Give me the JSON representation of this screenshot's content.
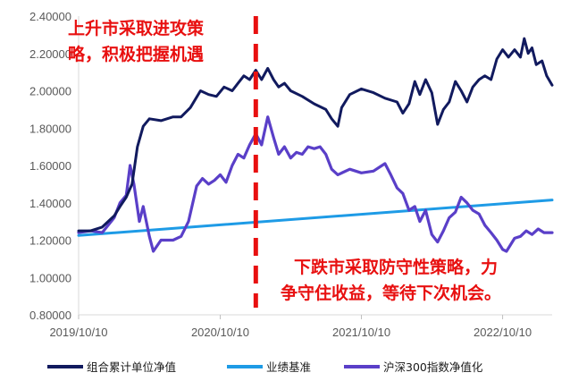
{
  "chart_data": {
    "type": "line",
    "title": "",
    "xlabel": "",
    "ylabel": "",
    "ylim": [
      0.8,
      2.4
    ],
    "yticks": [
      "0.80000",
      "1.00000",
      "1.20000",
      "1.40000",
      "1.60000",
      "1.80000",
      "2.00000",
      "2.20000",
      "2.40000"
    ],
    "xticks": [
      "2019/10/10",
      "2020/10/10",
      "2021/10/10",
      "2022/10/10"
    ],
    "xlim": [
      "2019/10/10",
      "2023/02/15"
    ],
    "grid": false,
    "legend_position": "bottom",
    "series": [
      {
        "name": "组合累计单位净值",
        "color": "#111a5e",
        "points": [
          [
            "2019/10/10",
            1.25
          ],
          [
            "2019/11/10",
            1.25
          ],
          [
            "2019/12/10",
            1.27
          ],
          [
            "2020/01/10",
            1.33
          ],
          [
            "2020/01/25",
            1.38
          ],
          [
            "2020/02/10",
            1.43
          ],
          [
            "2020/02/25",
            1.5
          ],
          [
            "2020/03/10",
            1.7
          ],
          [
            "2020/03/25",
            1.81
          ],
          [
            "2020/04/10",
            1.85
          ],
          [
            "2020/05/10",
            1.84
          ],
          [
            "2020/06/10",
            1.86
          ],
          [
            "2020/07/01",
            1.86
          ],
          [
            "2020/07/25",
            1.91
          ],
          [
            "2020/08/20",
            2.0
          ],
          [
            "2020/09/10",
            1.98
          ],
          [
            "2020/09/30",
            1.97
          ],
          [
            "2020/10/20",
            2.02
          ],
          [
            "2020/11/10",
            2.0
          ],
          [
            "2020/11/25",
            2.04
          ],
          [
            "2020/12/10",
            2.08
          ],
          [
            "2020/12/25",
            2.06
          ],
          [
            "2021/01/10",
            2.11
          ],
          [
            "2021/01/25",
            2.06
          ],
          [
            "2021/02/10",
            2.12
          ],
          [
            "2021/02/25",
            2.06
          ],
          [
            "2021/03/10",
            2.02
          ],
          [
            "2021/03/25",
            2.04
          ],
          [
            "2021/04/10",
            2.0
          ],
          [
            "2021/05/10",
            1.97
          ],
          [
            "2021/06/10",
            1.93
          ],
          [
            "2021/07/10",
            1.9
          ],
          [
            "2021/07/25",
            1.85
          ],
          [
            "2021/08/10",
            1.81
          ],
          [
            "2021/08/20",
            1.91
          ],
          [
            "2021/09/10",
            1.98
          ],
          [
            "2021/10/10",
            2.01
          ],
          [
            "2021/11/10",
            1.99
          ],
          [
            "2021/12/10",
            1.96
          ],
          [
            "2022/01/10",
            1.94
          ],
          [
            "2022/01/25",
            1.88
          ],
          [
            "2022/02/10",
            1.93
          ],
          [
            "2022/02/25",
            2.05
          ],
          [
            "2022/03/10",
            1.98
          ],
          [
            "2022/03/25",
            2.06
          ],
          [
            "2022/04/10",
            1.99
          ],
          [
            "2022/04/25",
            1.82
          ],
          [
            "2022/05/10",
            1.9
          ],
          [
            "2022/05/25",
            1.94
          ],
          [
            "2022/06/10",
            2.05
          ],
          [
            "2022/06/25",
            2.0
          ],
          [
            "2022/07/10",
            1.94
          ],
          [
            "2022/07/25",
            2.02
          ],
          [
            "2022/08/10",
            2.06
          ],
          [
            "2022/08/25",
            2.08
          ],
          [
            "2022/09/10",
            2.06
          ],
          [
            "2022/09/25",
            2.17
          ],
          [
            "2022/10/10",
            2.22
          ],
          [
            "2022/10/25",
            2.18
          ],
          [
            "2022/11/10",
            2.22
          ],
          [
            "2022/11/25",
            2.18
          ],
          [
            "2022/12/05",
            2.28
          ],
          [
            "2022/12/15",
            2.2
          ],
          [
            "2022/12/25",
            2.23
          ],
          [
            "2023/01/05",
            2.14
          ],
          [
            "2023/01/20",
            2.16
          ],
          [
            "2023/02/01",
            2.08
          ],
          [
            "2023/02/15",
            2.03
          ]
        ]
      },
      {
        "name": "业绩基准",
        "color": "#1e9be6",
        "points": [
          [
            "2019/10/10",
            1.225
          ],
          [
            "2023/02/15",
            1.415
          ]
        ]
      },
      {
        "name": "沪深300指数净值化",
        "color": "#5a3fc8",
        "points": [
          [
            "2019/10/10",
            1.24
          ],
          [
            "2019/11/10",
            1.25
          ],
          [
            "2019/12/10",
            1.24
          ],
          [
            "2020/01/10",
            1.32
          ],
          [
            "2020/01/25",
            1.4
          ],
          [
            "2020/02/10",
            1.44
          ],
          [
            "2020/02/20",
            1.6
          ],
          [
            "2020/03/01",
            1.5
          ],
          [
            "2020/03/15",
            1.3
          ],
          [
            "2020/03/25",
            1.38
          ],
          [
            "2020/04/10",
            1.22
          ],
          [
            "2020/04/20",
            1.14
          ],
          [
            "2020/05/10",
            1.2
          ],
          [
            "2020/06/10",
            1.2
          ],
          [
            "2020/07/01",
            1.22
          ],
          [
            "2020/07/20",
            1.3
          ],
          [
            "2020/08/10",
            1.49
          ],
          [
            "2020/08/25",
            1.53
          ],
          [
            "2020/09/10",
            1.5
          ],
          [
            "2020/09/25",
            1.52
          ],
          [
            "2020/10/10",
            1.55
          ],
          [
            "2020/10/25",
            1.51
          ],
          [
            "2020/11/10",
            1.6
          ],
          [
            "2020/11/25",
            1.66
          ],
          [
            "2020/12/10",
            1.64
          ],
          [
            "2020/12/25",
            1.71
          ],
          [
            "2021/01/10",
            1.77
          ],
          [
            "2021/01/25",
            1.71
          ],
          [
            "2021/02/10",
            1.86
          ],
          [
            "2021/02/25",
            1.75
          ],
          [
            "2021/03/10",
            1.66
          ],
          [
            "2021/03/25",
            1.7
          ],
          [
            "2021/04/10",
            1.64
          ],
          [
            "2021/04/25",
            1.67
          ],
          [
            "2021/05/10",
            1.66
          ],
          [
            "2021/05/25",
            1.7
          ],
          [
            "2021/06/10",
            1.69
          ],
          [
            "2021/06/25",
            1.7
          ],
          [
            "2021/07/10",
            1.66
          ],
          [
            "2021/07/25",
            1.58
          ],
          [
            "2021/08/10",
            1.55
          ],
          [
            "2021/09/10",
            1.58
          ],
          [
            "2021/10/10",
            1.56
          ],
          [
            "2021/11/10",
            1.57
          ],
          [
            "2021/12/10",
            1.61
          ],
          [
            "2021/12/25",
            1.55
          ],
          [
            "2022/01/10",
            1.48
          ],
          [
            "2022/01/25",
            1.45
          ],
          [
            "2022/02/10",
            1.36
          ],
          [
            "2022/02/25",
            1.38
          ],
          [
            "2022/03/10",
            1.3
          ],
          [
            "2022/03/25",
            1.36
          ],
          [
            "2022/04/10",
            1.23
          ],
          [
            "2022/04/25",
            1.19
          ],
          [
            "2022/05/10",
            1.25
          ],
          [
            "2022/05/25",
            1.32
          ],
          [
            "2022/06/10",
            1.35
          ],
          [
            "2022/06/25",
            1.43
          ],
          [
            "2022/07/10",
            1.4
          ],
          [
            "2022/07/25",
            1.36
          ],
          [
            "2022/08/10",
            1.34
          ],
          [
            "2022/08/25",
            1.28
          ],
          [
            "2022/09/10",
            1.24
          ],
          [
            "2022/09/25",
            1.2
          ],
          [
            "2022/10/10",
            1.15
          ],
          [
            "2022/10/20",
            1.14
          ],
          [
            "2022/11/10",
            1.21
          ],
          [
            "2022/11/25",
            1.22
          ],
          [
            "2022/12/10",
            1.25
          ],
          [
            "2022/12/25",
            1.23
          ],
          [
            "2023/01/10",
            1.26
          ],
          [
            "2023/01/25",
            1.24
          ],
          [
            "2023/02/15",
            1.24
          ]
        ]
      }
    ],
    "divider": {
      "date": "2021/01/10",
      "color": "#e81010",
      "style": "dashed"
    },
    "annotations": [
      {
        "lines": [
          "上升市采取进攻策",
          "略，积极把握机遇"
        ],
        "color": "#e81010"
      },
      {
        "lines": [
          "下跌市采取防守性策略，力",
          "争守住收益，等待下次机会。"
        ],
        "color": "#e81010"
      }
    ]
  }
}
